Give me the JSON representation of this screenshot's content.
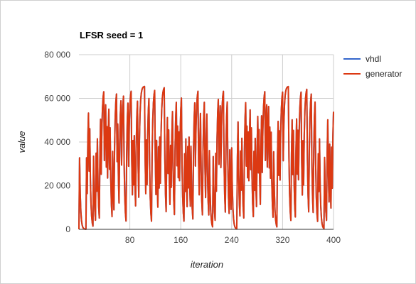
{
  "chart_data": {
    "type": "line",
    "title": "LFSR seed = 1",
    "xlabel": "iteration",
    "ylabel": "value",
    "xlim": [
      0,
      400
    ],
    "ylim": [
      0,
      80000
    ],
    "xticks": [
      80,
      160,
      240,
      320,
      400
    ],
    "xtick_labels": [
      "80",
      "160",
      "240",
      "320",
      "400"
    ],
    "yticks": [
      0,
      20000,
      40000,
      60000,
      80000
    ],
    "ytick_labels": [
      "0",
      "20 000",
      "40 000",
      "60 000",
      "80 000"
    ],
    "grid": true,
    "legend_position": "right",
    "series": [
      {
        "name": "vhdl",
        "color": "#3366cc",
        "values": []
      },
      {
        "name": "generator",
        "color": "#dc3912",
        "values": []
      }
    ]
  }
}
